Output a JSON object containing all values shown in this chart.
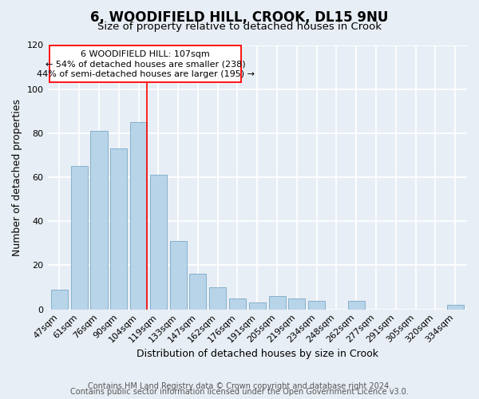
{
  "title": "6, WOODIFIELD HILL, CROOK, DL15 9NU",
  "subtitle": "Size of property relative to detached houses in Crook",
  "xlabel": "Distribution of detached houses by size in Crook",
  "ylabel": "Number of detached properties",
  "bar_color": "#b8d4e8",
  "bar_edge_color": "#7aaac8",
  "background_color": "#e8eef5",
  "plot_bg_color": "#e8eef5",
  "categories": [
    "47sqm",
    "61sqm",
    "76sqm",
    "90sqm",
    "104sqm",
    "119sqm",
    "133sqm",
    "147sqm",
    "162sqm",
    "176sqm",
    "191sqm",
    "205sqm",
    "219sqm",
    "234sqm",
    "248sqm",
    "262sqm",
    "277sqm",
    "291sqm",
    "305sqm",
    "320sqm",
    "334sqm"
  ],
  "values": [
    9,
    65,
    81,
    73,
    85,
    61,
    31,
    16,
    10,
    5,
    3,
    6,
    5,
    4,
    0,
    4,
    0,
    0,
    0,
    0,
    2
  ],
  "highlight_index": 4,
  "ylim": [
    0,
    120
  ],
  "yticks": [
    0,
    20,
    40,
    60,
    80,
    100,
    120
  ],
  "annotation_title": "6 WOODIFIELD HILL: 107sqm",
  "annotation_line1": "← 54% of detached houses are smaller (238)",
  "annotation_line2": "44% of semi-detached houses are larger (195) →",
  "footer_line1": "Contains HM Land Registry data © Crown copyright and database right 2024.",
  "footer_line2": "Contains public sector information licensed under the Open Government Licence v3.0.",
  "title_fontsize": 12,
  "subtitle_fontsize": 9.5,
  "axis_label_fontsize": 9,
  "tick_fontsize": 8,
  "annotation_fontsize": 8,
  "footer_fontsize": 7
}
